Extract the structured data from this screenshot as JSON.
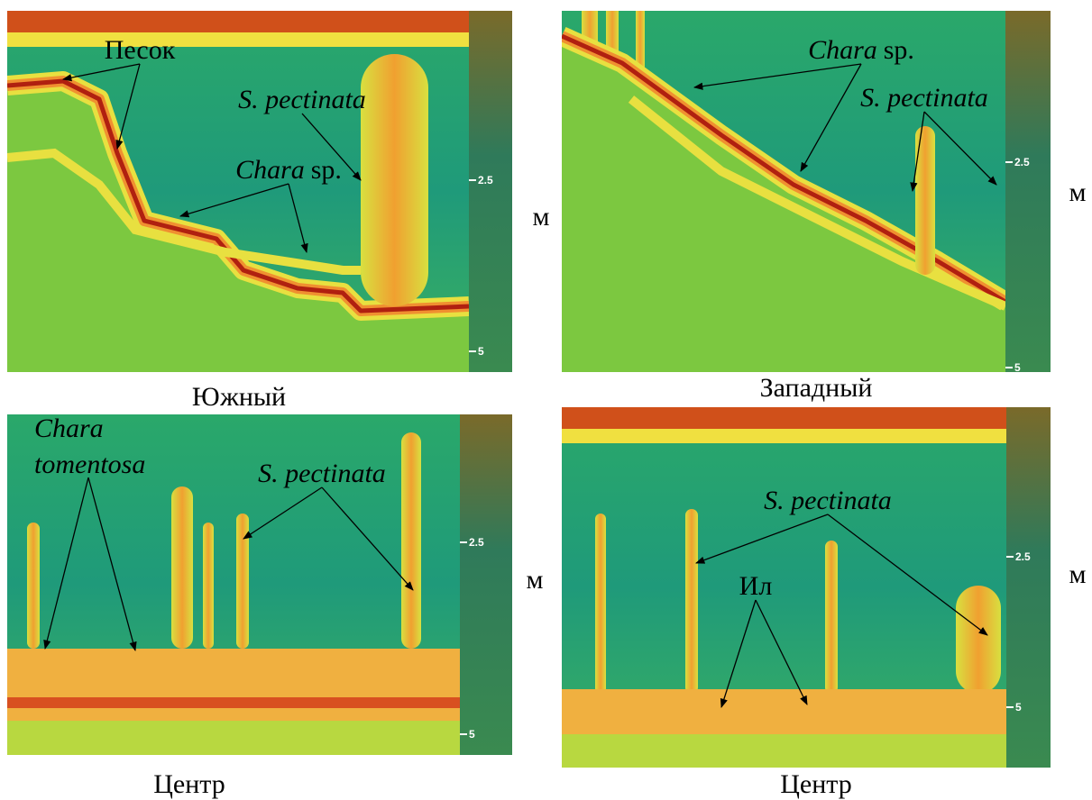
{
  "panels": [
    {
      "caption": "Южный",
      "unit": "м",
      "scale": [
        2.5,
        5
      ],
      "annotations": [
        {
          "label": "Песок"
        },
        {
          "species": "S. pectinata"
        },
        {
          "species": "Chara",
          "suffix": "sp."
        }
      ]
    },
    {
      "caption": "Западный",
      "unit": "м",
      "scale": [
        2.5,
        5
      ],
      "annotations": [
        {
          "species": "Chara",
          "suffix": "sp."
        },
        {
          "species": "S. pectinata"
        }
      ]
    },
    {
      "caption": "Центр",
      "unit": "м",
      "scale": [
        2.5,
        5
      ],
      "annotations": [
        {
          "lines": [
            "Chara",
            "tomentosa"
          ]
        },
        {
          "species": "S. pectinata"
        }
      ]
    },
    {
      "caption": "Центр",
      "unit": "м",
      "scale": [
        2.5,
        5
      ],
      "annotations": [
        {
          "species": "S. pectinata"
        },
        {
          "label": "Ил"
        }
      ]
    }
  ]
}
